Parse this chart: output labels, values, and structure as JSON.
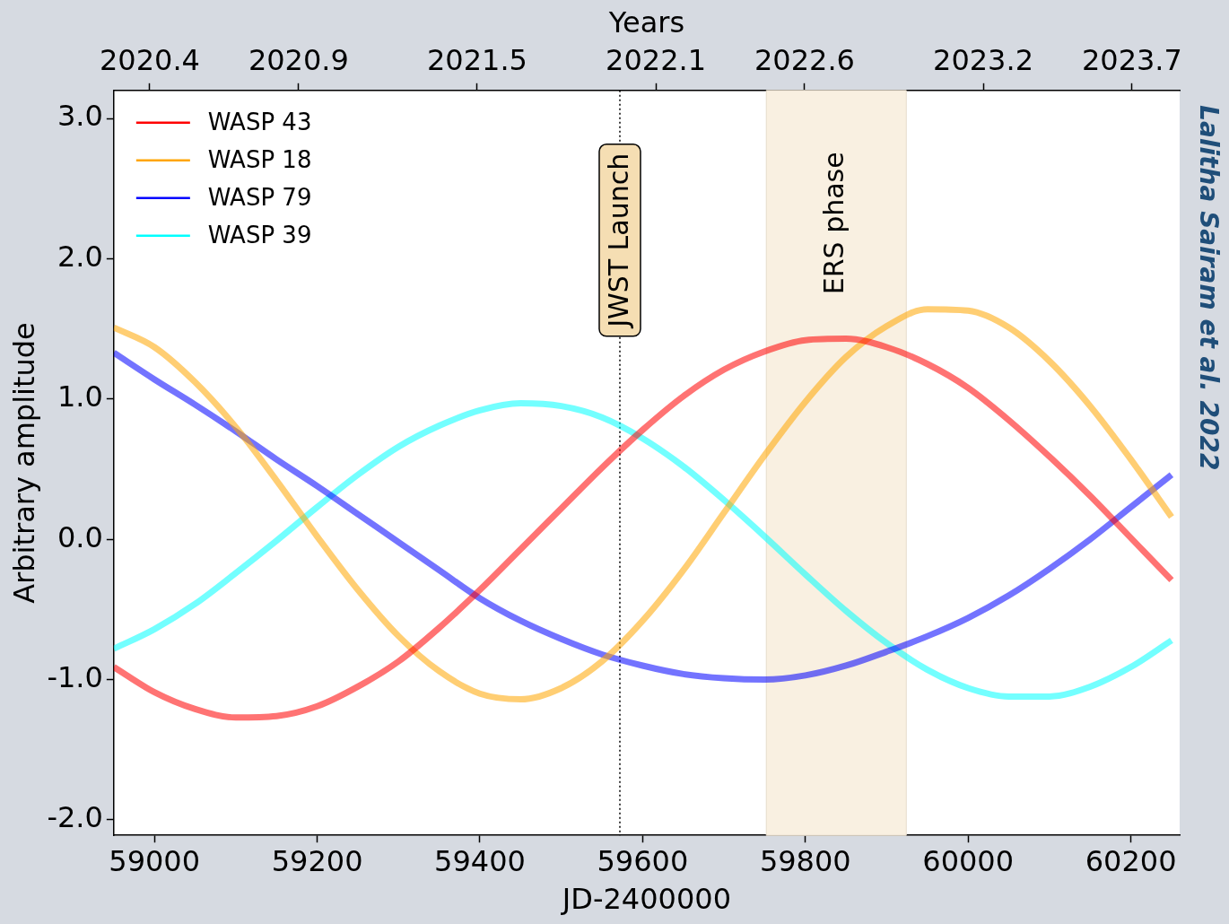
{
  "chart_data": {
    "type": "line",
    "xlabel": "JD-2400000",
    "ylabel": "Arbitrary amplitude",
    "x2label": "Years",
    "x": [
      58950,
      59000,
      59050,
      59100,
      59150,
      59200,
      59250,
      59300,
      59350,
      59400,
      59450,
      59500,
      59550,
      59600,
      59650,
      59700,
      59750,
      59800,
      59850,
      59900,
      59950,
      60000,
      60050,
      60100,
      60150,
      60200,
      60250
    ],
    "series": [
      {
        "name": "WASP 43",
        "color": "#ff0000",
        "values": [
          -0.91,
          -1.09,
          -1.21,
          -1.27,
          -1.26,
          -1.19,
          -1.05,
          -0.87,
          -0.63,
          -0.36,
          -0.07,
          0.22,
          0.51,
          0.78,
          1.02,
          1.21,
          1.34,
          1.42,
          1.43,
          1.37,
          1.25,
          1.08,
          0.85,
          0.59,
          0.31,
          0.01,
          -0.29
        ]
      },
      {
        "name": "WASP 18",
        "color": "#ffa500",
        "values": [
          1.51,
          1.37,
          1.12,
          0.8,
          0.42,
          0.02,
          -0.36,
          -0.69,
          -0.94,
          -1.1,
          -1.14,
          -1.06,
          -0.87,
          -0.58,
          -0.22,
          0.19,
          0.6,
          0.98,
          1.3,
          1.52,
          1.64,
          1.63,
          1.51,
          1.27,
          0.95,
          0.57,
          0.16
        ]
      },
      {
        "name": "WASP 79",
        "color": "#0000ff",
        "values": [
          1.33,
          1.14,
          0.96,
          0.77,
          0.57,
          0.38,
          0.18,
          -0.02,
          -0.22,
          -0.42,
          -0.58,
          -0.71,
          -0.82,
          -0.9,
          -0.96,
          -0.99,
          -1.0,
          -0.97,
          -0.9,
          -0.8,
          -0.69,
          -0.56,
          -0.4,
          -0.21,
          0.0,
          0.23,
          0.46
        ]
      },
      {
        "name": "WASP 39",
        "color": "#00ffff",
        "values": [
          -0.78,
          -0.64,
          -0.46,
          -0.24,
          -0.01,
          0.23,
          0.46,
          0.66,
          0.81,
          0.92,
          0.97,
          0.95,
          0.87,
          0.72,
          0.52,
          0.28,
          0.02,
          -0.25,
          -0.51,
          -0.74,
          -0.93,
          -1.06,
          -1.12,
          -1.12,
          -1.05,
          -0.91,
          -0.72
        ]
      }
    ],
    "xlim": [
      58950,
      60260
    ],
    "xticks": [
      59000,
      59200,
      59400,
      59600,
      59800,
      60000,
      60200
    ],
    "x2lim": [
      2020.279,
      2023.86
    ],
    "x2ticks": [
      {
        "value": 2020.4,
        "label": "2020.4"
      },
      {
        "value": 2020.9,
        "label": "2020.9"
      },
      {
        "value": 2021.5,
        "label": "2021.5"
      },
      {
        "value": 2022.1,
        "label": "2022.1"
      },
      {
        "value": 2022.6,
        "label": "2022.6"
      },
      {
        "value": 2023.2,
        "label": "2023.2"
      },
      {
        "value": 2023.7,
        "label": "2023.7"
      }
    ],
    "ylim": [
      -2.11,
      3.2
    ],
    "yticks": [
      {
        "value": -2,
        "label": "-2.0"
      },
      {
        "value": -1,
        "label": "-1.0"
      },
      {
        "value": 0,
        "label": "0.0"
      },
      {
        "value": 1,
        "label": "1.0"
      },
      {
        "value": 2,
        "label": "2.0"
      },
      {
        "value": 3,
        "label": "3.0"
      }
    ],
    "ref_lines": [
      {
        "axis": "x",
        "value": 59572,
        "label": "JWST Launch",
        "color": "#000000",
        "line_style": "dotted"
      }
    ],
    "bands": [
      {
        "axis": "x",
        "from": 59752,
        "to": 59924,
        "label": "ERS phase",
        "color": "#f9f0e1"
      }
    ],
    "annotations": [
      "Lalitha Sairam et al. 2022"
    ],
    "legend": "top left",
    "grid": false,
    "marker": "none",
    "line_style": "solid"
  }
}
